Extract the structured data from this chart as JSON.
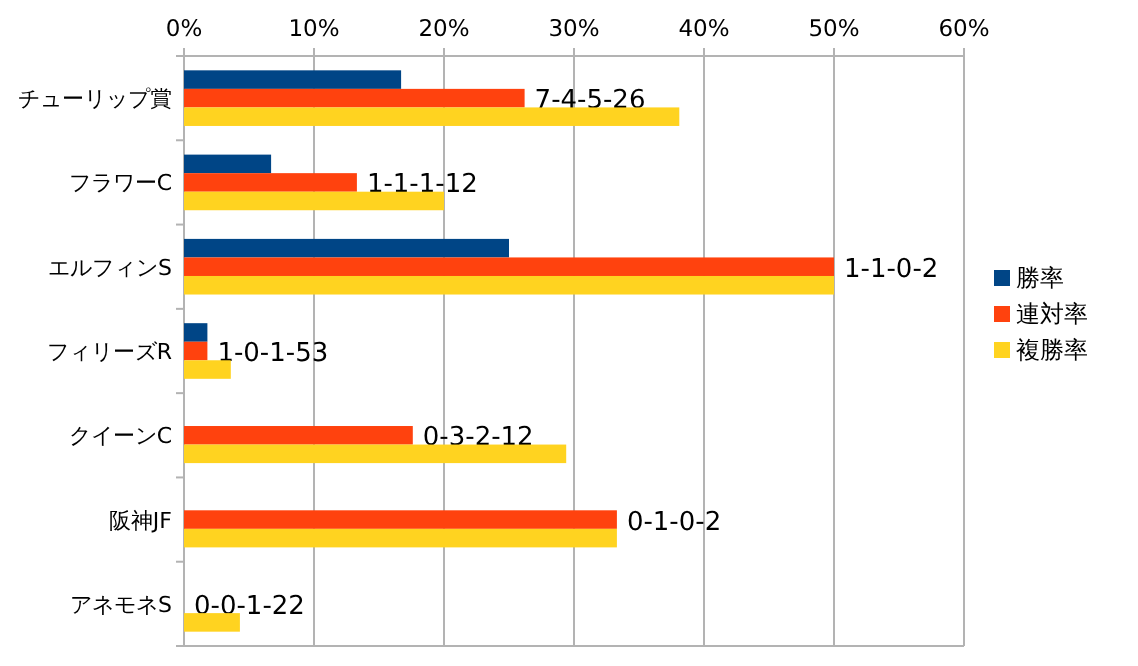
{
  "chart_data": {
    "type": "bar",
    "orientation": "horizontal",
    "categories": [
      "チューリップ賞",
      "フラワーC",
      "エルフィンS",
      "フィリーズR",
      "クイーンC",
      "阪神JF",
      "アネモネS"
    ],
    "series": [
      {
        "name": "勝率",
        "color": "#004586",
        "values": [
          16.7,
          6.7,
          25,
          1.8,
          0,
          0,
          0
        ]
      },
      {
        "name": "連対率",
        "color": "#ff420e",
        "values": [
          26.2,
          13.3,
          50,
          1.8,
          17.6,
          33.3,
          0
        ],
        "value_labels": [
          "7-4-5-26",
          "1-1-1-12",
          "1-1-0-2",
          "1-0-1-53",
          "0-3-2-12",
          "0-1-0-2",
          "0-0-1-22"
        ]
      },
      {
        "name": "複勝率",
        "color": "#ffd320",
        "values": [
          38.1,
          20,
          50,
          3.6,
          29.4,
          33.3,
          4.3
        ]
      }
    ],
    "xlim": [
      0,
      60
    ],
    "xticks": [
      {
        "value": 0,
        "label": "0%"
      },
      {
        "value": 10,
        "label": "10%"
      },
      {
        "value": 20,
        "label": "20%"
      },
      {
        "value": 30,
        "label": "30%"
      },
      {
        "value": 40,
        "label": "40%"
      },
      {
        "value": 50,
        "label": "50%"
      },
      {
        "value": 60,
        "label": "60%"
      }
    ],
    "grid": "x",
    "legend": "right"
  }
}
